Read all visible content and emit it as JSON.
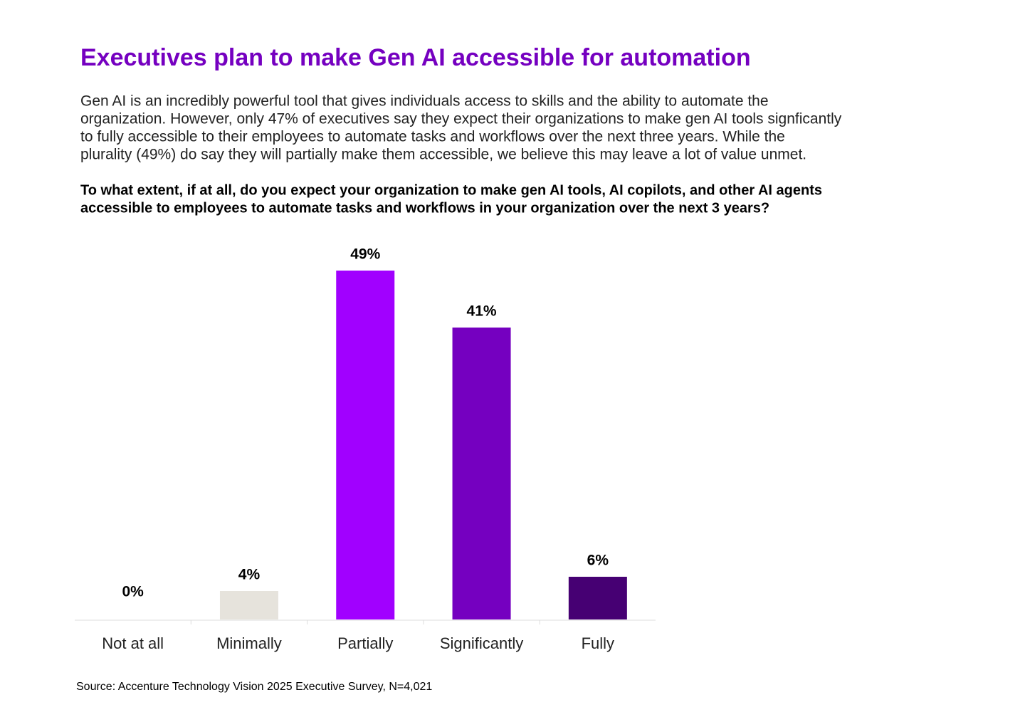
{
  "chart_data": {
    "type": "bar",
    "title": "Executives plan to make Gen AI accessible for automation",
    "subtitle": [
      "Gen AI is an incredibly powerful tool that gives individuals access to skills and the ability to automate the",
      "organization. However, only 47% of executives say they expect their organizations to make gen AI tools signficantly",
      "to fully accessible to their employees to automate tasks and workflows over the next three years. While the",
      "plurality (49%) do say they will partially make them accessible, we believe this may leave a lot of value unmet."
    ],
    "question": [
      "To what extent, if at all, do you expect your organization to make gen AI tools, AI copilots, and other AI agents",
      "accessible to employees to automate tasks and workflows in your organization over the next 3 years?"
    ],
    "categories": [
      "Not at all",
      "Minimally",
      "Partially",
      "Significantly",
      "Fully"
    ],
    "values": [
      0,
      4,
      49,
      41,
      6
    ],
    "value_labels": [
      "0%",
      "4%",
      "49%",
      "41%",
      "6%"
    ],
    "colors": [
      "#e6e3dc",
      "#e6e3dc",
      "#a100ff",
      "#7500c0",
      "#460073"
    ],
    "source": "Source: Accenture Technology Vision 2025 Executive Survey, N=4,021"
  }
}
